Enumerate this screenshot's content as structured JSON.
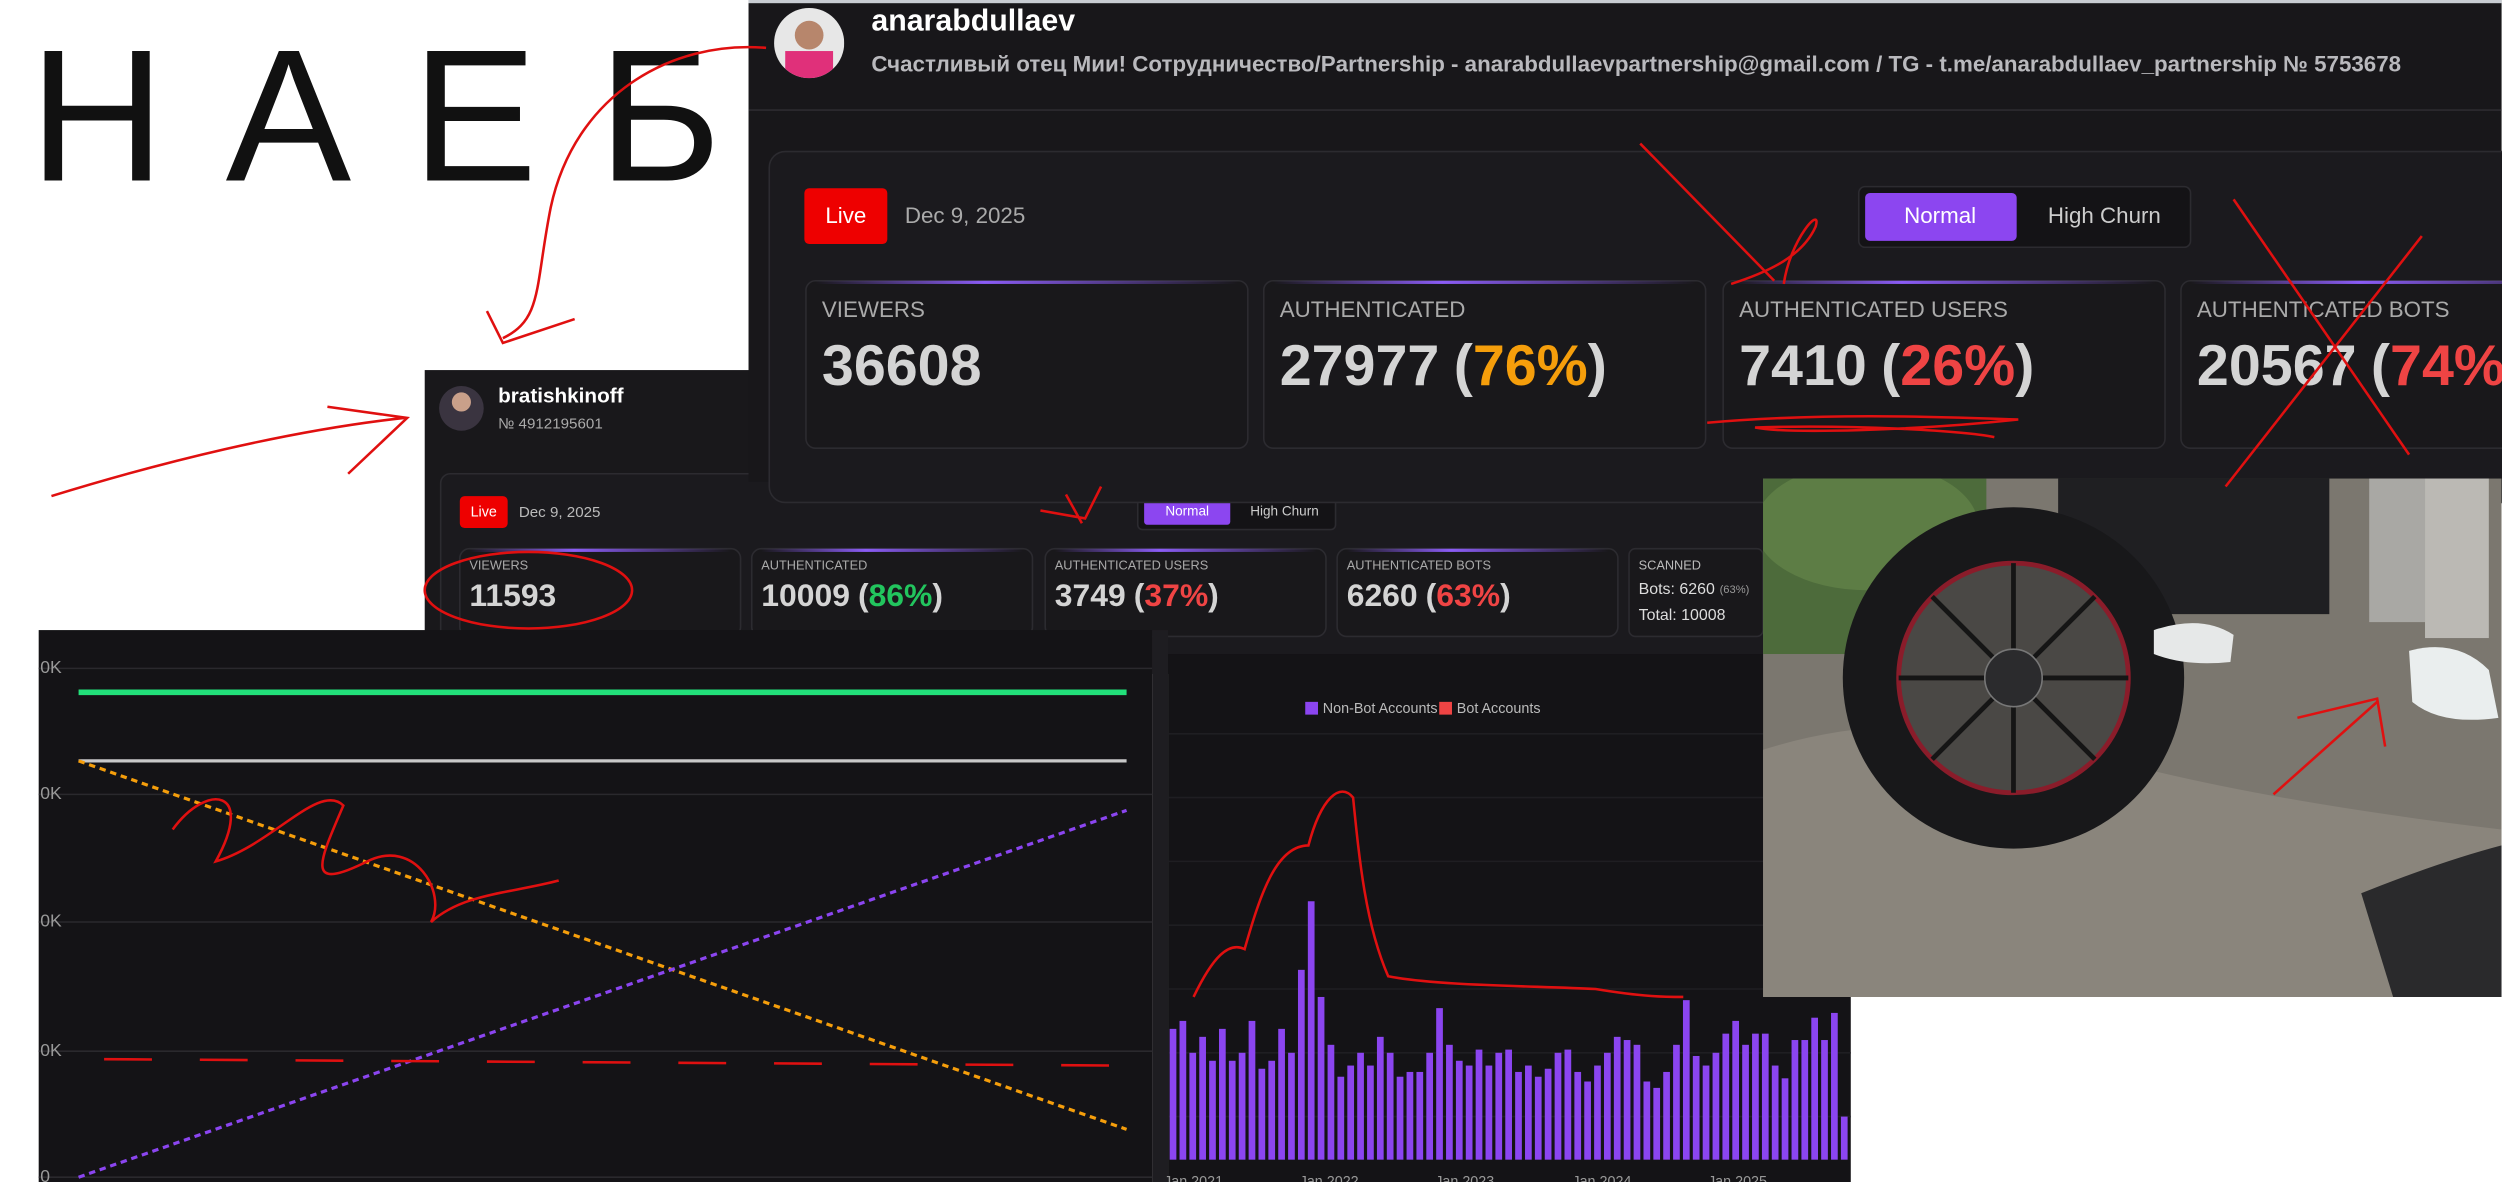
{
  "doodle": {
    "text": "НАЕБ"
  },
  "panel_main": {
    "username": "anarabdullaev",
    "bio": "Счастливый отец Мии! Сотрудничество/Partnership - anarabdullaevpartnership@gmail.com / TG - t.me/anarabdullaev_partnership № 5753678",
    "live": "Live",
    "date": "Dec 9, 2025",
    "tabs": [
      "Normal",
      "High Churn"
    ],
    "stats": [
      {
        "label": "VIEWERS",
        "count": "36608"
      },
      {
        "label": "AUTHENTICATED",
        "count": "27977",
        "open": "(",
        "percent": "76%",
        "close": ")",
        "percent_color": "#f59e0b"
      },
      {
        "label": "AUTHENTICATED USERS",
        "count": "7410",
        "open": "(",
        "percent": "26%",
        "close": ")",
        "percent_color": "#ef4444"
      },
      {
        "label": "AUTHENTICATED BOTS",
        "count": "20567",
        "open": "(",
        "percent": "74%",
        "close": ")",
        "percent_color": "#ef4444"
      }
    ]
  },
  "panel_second": {
    "username": "bratishkinoff",
    "id": "№ 4912195601",
    "live": "Live",
    "date": "Dec 9, 2025",
    "tabs": [
      "Normal",
      "High Churn"
    ],
    "stats": [
      {
        "label": "VIEWERS",
        "count": "11593"
      },
      {
        "label": "AUTHENTICATED",
        "count": "10009",
        "open": "(",
        "percent": "86%",
        "close": ")",
        "percent_color": "#22c55e"
      },
      {
        "label": "AUTHENTICATED USERS",
        "count": "3749",
        "open": "(",
        "percent": "37%",
        "close": ")",
        "percent_color": "#ef4444"
      },
      {
        "label": "AUTHENTICATED BOTS",
        "count": "6260",
        "open": "(",
        "percent": "63%",
        "close": ")",
        "percent_color": "#ef4444"
      }
    ],
    "scanned": {
      "label": "SCANNED",
      "bots": "Bots: 6260",
      "bots_pct": "(63%)",
      "total": "Total: 10008"
    }
  },
  "line_chart": {
    "y_labels": [
      "0K",
      "0K",
      "0K",
      "0K",
      "0"
    ]
  },
  "bar_chart": {
    "legend": [
      {
        "name": "Non-Bot Accounts",
        "color": "#8b45f0"
      },
      {
        "name": "Bot Accounts",
        "color": "#ef4444"
      }
    ],
    "x_labels": [
      "Jan 2021",
      "Jan 2022",
      "Jan 2023",
      "Jan 2024",
      "Jan 2025"
    ],
    "values": [
      82,
      87,
      67,
      77,
      62,
      82,
      62,
      67,
      87,
      57,
      62,
      82,
      67,
      119,
      162,
      102,
      72,
      52,
      59,
      67,
      59,
      77,
      67,
      52,
      55,
      55,
      67,
      95,
      72,
      62,
      59,
      69,
      59,
      67,
      69,
      55,
      59,
      52,
      57,
      67,
      69,
      55,
      49,
      59,
      67,
      77,
      75,
      72,
      49,
      45,
      55,
      72,
      100,
      65,
      59,
      67,
      79,
      87,
      72,
      79,
      79,
      59,
      51,
      75,
      75,
      89,
      75,
      92,
      27
    ]
  }
}
